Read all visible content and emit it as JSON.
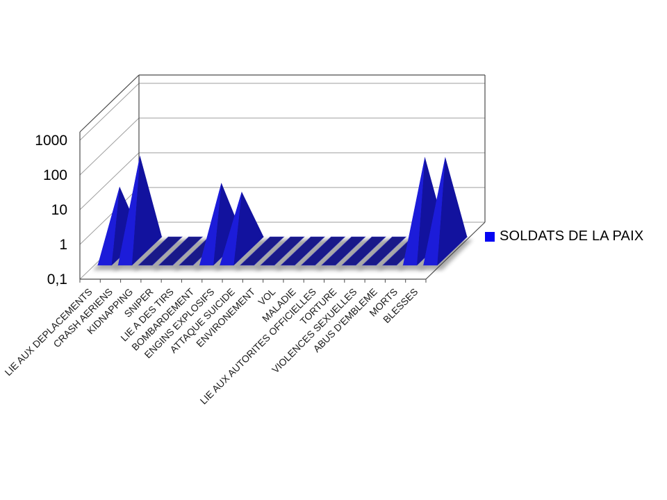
{
  "page": {
    "background": "#ffffff"
  },
  "legend": {
    "label": "SOLDATS DE LA PAIX"
  },
  "chart_data": {
    "type": "bar",
    "variant": "3d-pyramid",
    "title": "",
    "xlabel": "",
    "ylabel": "",
    "categories": [
      "LIE AUX DEPLACEMENTS",
      "CRASH AERIENS",
      "KIDNAPPING",
      "SNIPER",
      "LIE A DES TIRS",
      "BOMBARDEMENT",
      "ENGINS EXPLOSIFS",
      "ATTAQUE SUICIDE",
      "ENVIRONEMENT",
      "VOL",
      "MALADIE",
      "LIE AUX AUTORITES OFFICIELLES",
      "TORTURE",
      "VIOLENCES SEXUELLES",
      "ABUS D'EMBLEME",
      "MORTS",
      "BLESSES"
    ],
    "series": [
      {
        "name": "SOLDATS DE LA PAIX",
        "color": "#1C1CD9",
        "values": [
          7,
          55,
          0,
          0,
          0,
          9,
          5,
          0,
          0,
          0,
          0,
          0,
          0,
          0,
          0,
          50,
          50
        ]
      }
    ],
    "y_axis": {
      "scale": "log",
      "min": 0.1,
      "max": 1000,
      "tick_labels": [
        "1000",
        "100",
        "10",
        "1",
        "0,1"
      ],
      "tick_values": [
        1000,
        100,
        10,
        1,
        0.1
      ]
    },
    "x_axis": {
      "label_rotation_deg": 45
    },
    "legend_position": "right",
    "grid": true,
    "colors": {
      "pyramid_front": "#1C1CD9",
      "pyramid_right": "#12129E",
      "pyramid_left": "#2A2AE4",
      "base_stripe": "#191989",
      "stripe_edge": "#3535C8",
      "legend_marker": "#0505F2",
      "gridline": "#9E9E9E",
      "wall_edge": "#4A4A4A",
      "shadow": "#8F8F8F",
      "text": "#1A1A1A"
    }
  }
}
